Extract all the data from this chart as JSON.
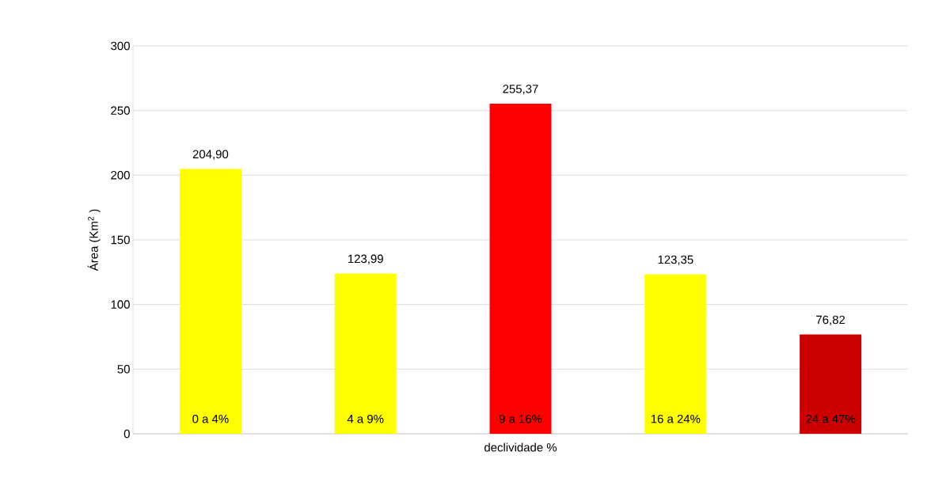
{
  "chart_data": {
    "type": "bar",
    "xlabel": "declividade %",
    "ylabel": "Área (Km$^{2}$ )",
    "categories": [
      "0 a 4%",
      "4 a 9%",
      "9 a 16%",
      "16 a 24%",
      "24 a 47%"
    ],
    "values": [
      204.9,
      123.99,
      255.37,
      123.35,
      76.82
    ],
    "value_labels": [
      "204,90",
      "123,99",
      "255,37",
      "123,35",
      "76,82"
    ],
    "colors": [
      "#ffff00",
      "#ffff00",
      "#ff0000",
      "#ffff00",
      "#cc0000"
    ],
    "ylim": [
      0,
      300
    ],
    "yticks": [
      0,
      50,
      100,
      150,
      200,
      250,
      300
    ],
    "grid": "y"
  }
}
